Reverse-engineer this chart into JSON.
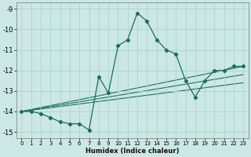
{
  "xlabel": "Humidex (Indice chaleur)",
  "bg_color": "#cce8e4",
  "grid_color": "#aad4cc",
  "line_color": "#1a6e5e",
  "xlim": [
    -0.5,
    23.5
  ],
  "ylim": [
    -15.3,
    -8.7
  ],
  "yticks": [
    -15,
    -14,
    -13,
    -12,
    -11,
    -10,
    -9
  ],
  "xticks": [
    0,
    1,
    2,
    3,
    4,
    5,
    6,
    7,
    8,
    9,
    10,
    11,
    12,
    13,
    14,
    15,
    16,
    17,
    18,
    19,
    20,
    21,
    22,
    23
  ],
  "series": [
    [
      0,
      -14.0
    ],
    [
      1,
      -14.0
    ],
    [
      2,
      -14.1
    ],
    [
      3,
      -14.3
    ],
    [
      4,
      -14.5
    ],
    [
      5,
      -14.6
    ],
    [
      6,
      -14.6
    ],
    [
      7,
      -14.9
    ],
    [
      8,
      -12.3
    ],
    [
      9,
      -13.1
    ],
    [
      10,
      -10.8
    ],
    [
      11,
      -10.5
    ],
    [
      12,
      -9.2
    ],
    [
      13,
      -9.6
    ],
    [
      14,
      -10.5
    ],
    [
      15,
      -11.0
    ],
    [
      16,
      -11.2
    ],
    [
      17,
      -12.5
    ],
    [
      18,
      -13.3
    ],
    [
      19,
      -12.5
    ],
    [
      20,
      -12.0
    ],
    [
      21,
      -12.0
    ],
    [
      22,
      -11.8
    ],
    [
      23,
      -11.8
    ]
  ],
  "linear1": [
    [
      0,
      -14.0
    ],
    [
      23,
      -11.8
    ]
  ],
  "linear2": [
    [
      0,
      -14.0
    ],
    [
      23,
      -12.2
    ]
  ],
  "linear3": [
    [
      0,
      -14.0
    ],
    [
      23,
      -12.6
    ]
  ]
}
